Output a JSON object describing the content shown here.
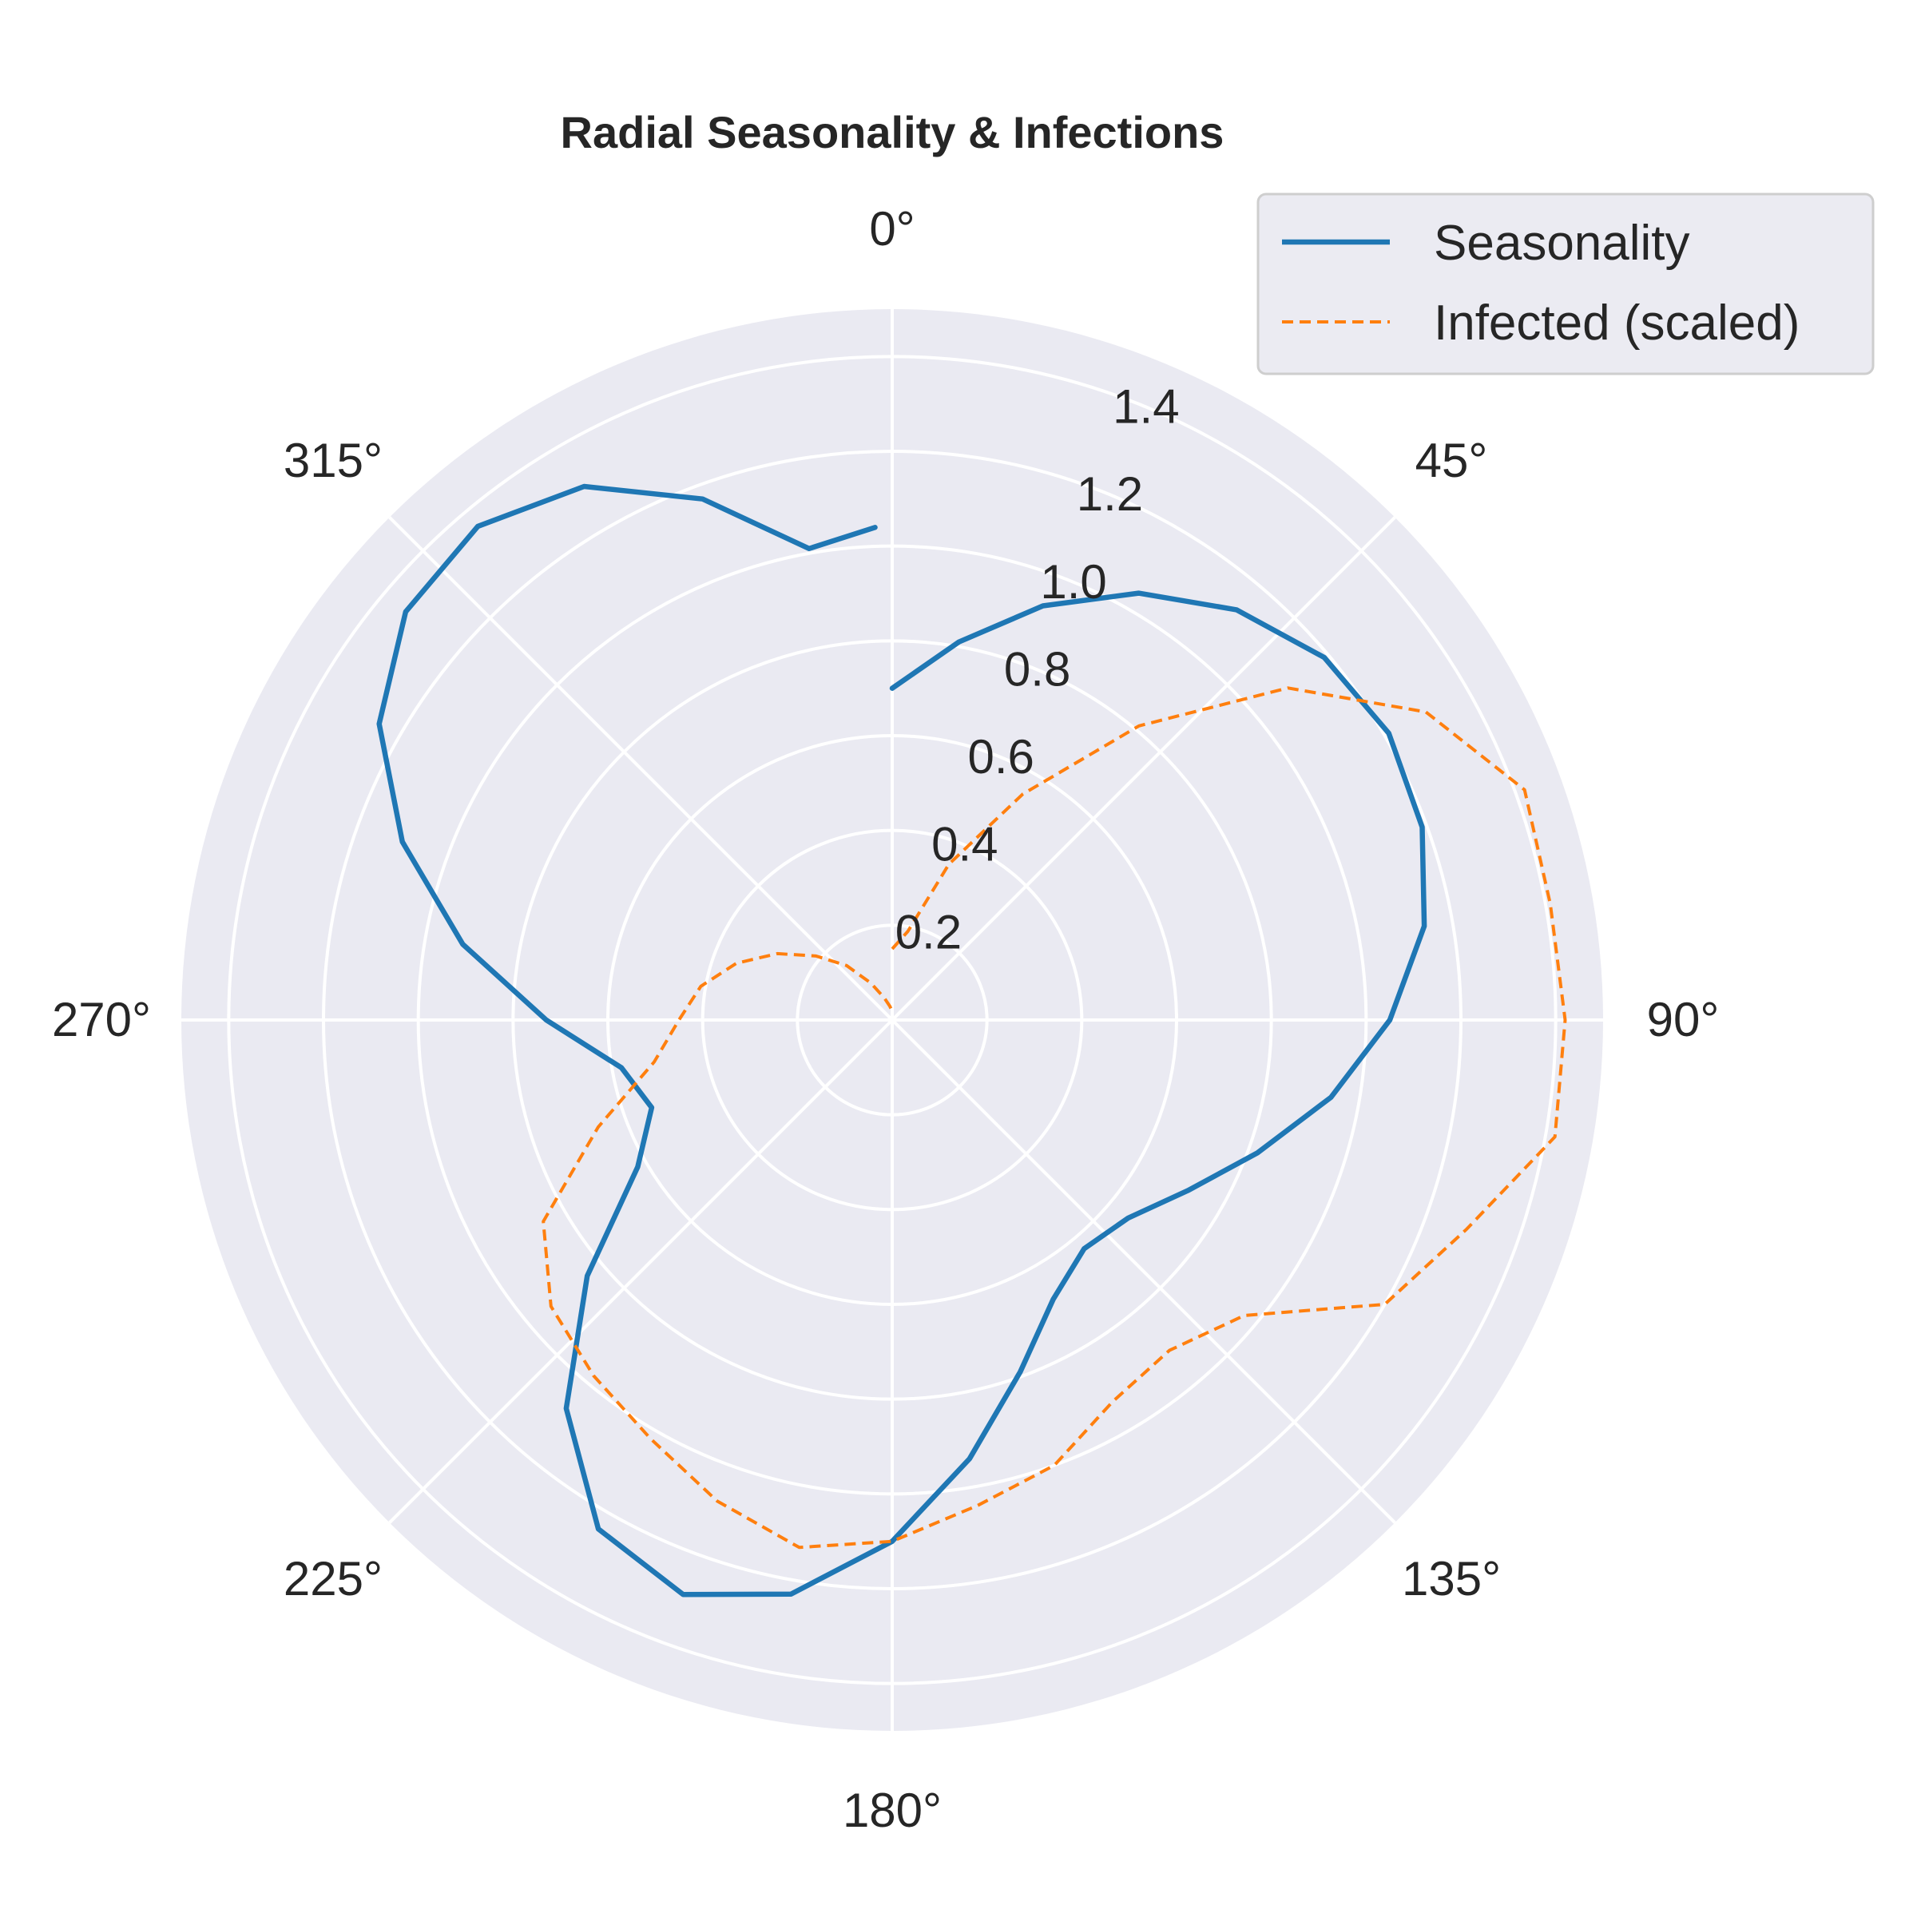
{
  "chart_data": {
    "type": "line",
    "projection": "polar",
    "title": "Radial Seasonality & Infections",
    "theta_direction": "clockwise",
    "theta_zero": "top",
    "theta_tick_labels": [
      "0°",
      "45°",
      "90°",
      "135°",
      "180°",
      "225°",
      "270°",
      "315°"
    ],
    "theta_ticks_deg": [
      0,
      45,
      90,
      135,
      180,
      225,
      270,
      315
    ],
    "r_tick_labels": [
      "0.2",
      "0.4",
      "0.6",
      "0.8",
      "1.0",
      "1.2",
      "1.4"
    ],
    "r_ticks": [
      0.2,
      0.4,
      0.6,
      0.8,
      1.0,
      1.2,
      1.4
    ],
    "rlim": [
      0,
      1.5
    ],
    "grid": true,
    "legend_position": "top-right",
    "colors": {
      "background": "#eaeaf2",
      "grid": "#ffffff",
      "seasonality": "#1f77b4",
      "infected": "#ff7f0e"
    },
    "series": [
      {
        "name": "Seasonality",
        "style": "solid",
        "theta_deg": [
          0,
          10,
          20,
          30,
          40,
          50,
          60,
          70,
          80,
          90,
          100,
          110,
          120,
          130,
          140,
          150,
          160,
          170,
          180,
          190,
          200,
          210,
          220,
          230,
          240,
          250,
          260,
          270,
          280,
          290,
          300,
          310,
          320,
          330,
          340,
          350,
          358
        ],
        "r": [
          0.7,
          0.81,
          0.93,
          1.04,
          1.13,
          1.19,
          1.21,
          1.19,
          1.14,
          1.05,
          0.94,
          0.82,
          0.72,
          0.65,
          0.63,
          0.68,
          0.79,
          0.94,
          1.1,
          1.23,
          1.29,
          1.24,
          1.07,
          0.84,
          0.62,
          0.54,
          0.58,
          0.73,
          0.92,
          1.1,
          1.25,
          1.34,
          1.36,
          1.3,
          1.17,
          1.01,
          1.04
        ]
      },
      {
        "name": "Infected (scaled)",
        "style": "dashed",
        "theta_deg": [
          0,
          10,
          20,
          30,
          40,
          50,
          60,
          70,
          80,
          90,
          100,
          110,
          120,
          130,
          140,
          150,
          160,
          170,
          180,
          190,
          200,
          210,
          220,
          230,
          240,
          250,
          260,
          270,
          280,
          290,
          300,
          310,
          320,
          330,
          340,
          350,
          358
        ],
        "r": [
          0.15,
          0.19,
          0.35,
          0.55,
          0.81,
          1.09,
          1.3,
          1.42,
          1.41,
          1.42,
          1.42,
          1.29,
          1.2,
          0.97,
          0.91,
          0.93,
          1.0,
          1.04,
          1.1,
          1.13,
          1.08,
          1.02,
          0.98,
          0.94,
          0.85,
          0.66,
          0.51,
          0.45,
          0.41,
          0.35,
          0.28,
          0.21,
          0.15,
          0.09,
          0.05,
          0.03,
          0.02
        ]
      }
    ]
  }
}
